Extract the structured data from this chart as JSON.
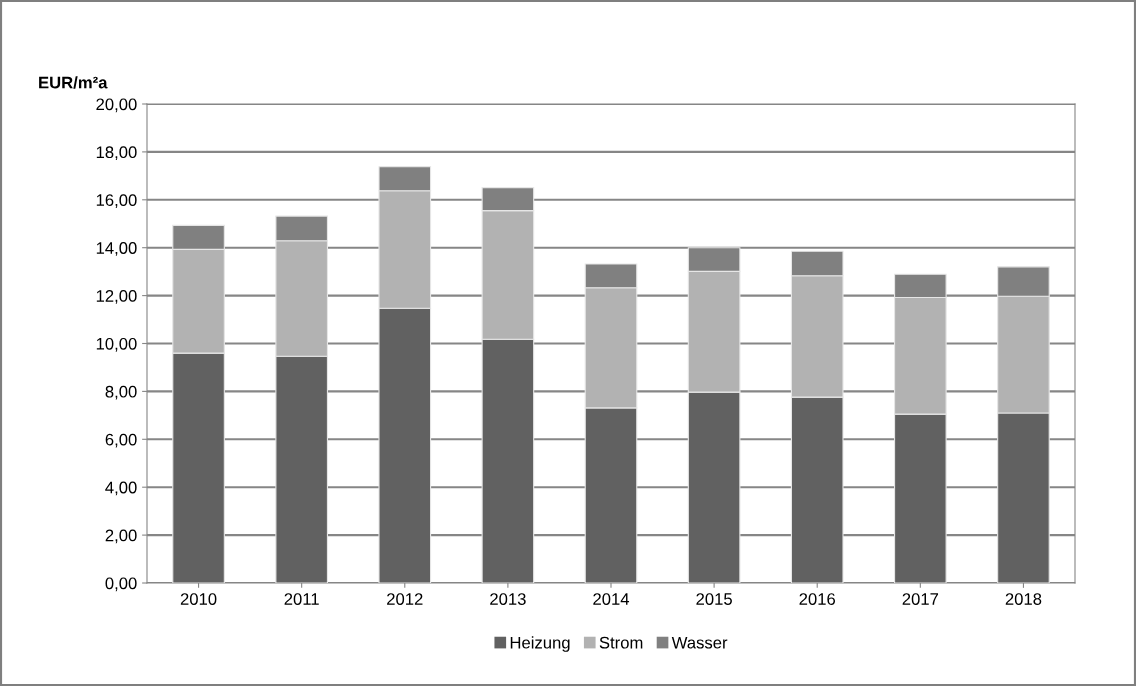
{
  "chart_data": {
    "type": "bar",
    "stacked": true,
    "ylabel": "EUR/m²a",
    "categories": [
      "2010",
      "2011",
      "2012",
      "2013",
      "2014",
      "2015",
      "2016",
      "2017",
      "2018"
    ],
    "series": [
      {
        "name": "Heizung",
        "color": "#616161",
        "values": [
          9.6,
          9.47,
          11.47,
          10.18,
          7.31,
          7.97,
          7.76,
          7.05,
          7.1
        ]
      },
      {
        "name": "Strom",
        "color": "#b2b2b2",
        "values": [
          4.33,
          4.82,
          4.91,
          5.37,
          5.02,
          5.04,
          5.07,
          4.87,
          4.87
        ]
      },
      {
        "name": "Wasser",
        "color": "#808080",
        "values": [
          1.0,
          1.03,
          1.0,
          0.96,
          0.99,
          0.99,
          1.02,
          0.97,
          1.23
        ]
      }
    ],
    "ylim": [
      0,
      20
    ],
    "yticks": [
      {
        "value": 0,
        "label": "0,00"
      },
      {
        "value": 2,
        "label": "2,00"
      },
      {
        "value": 4,
        "label": "4,00"
      },
      {
        "value": 6,
        "label": "6,00"
      },
      {
        "value": 8,
        "label": "8,00"
      },
      {
        "value": 10,
        "label": "10,00"
      },
      {
        "value": 12,
        "label": "12,00"
      },
      {
        "value": 14,
        "label": "14,00"
      },
      {
        "value": 16,
        "label": "16,00"
      },
      {
        "value": 18,
        "label": "18,00"
      },
      {
        "value": 20,
        "label": "20,00"
      }
    ],
    "grid": "y",
    "legend": "bottom"
  }
}
